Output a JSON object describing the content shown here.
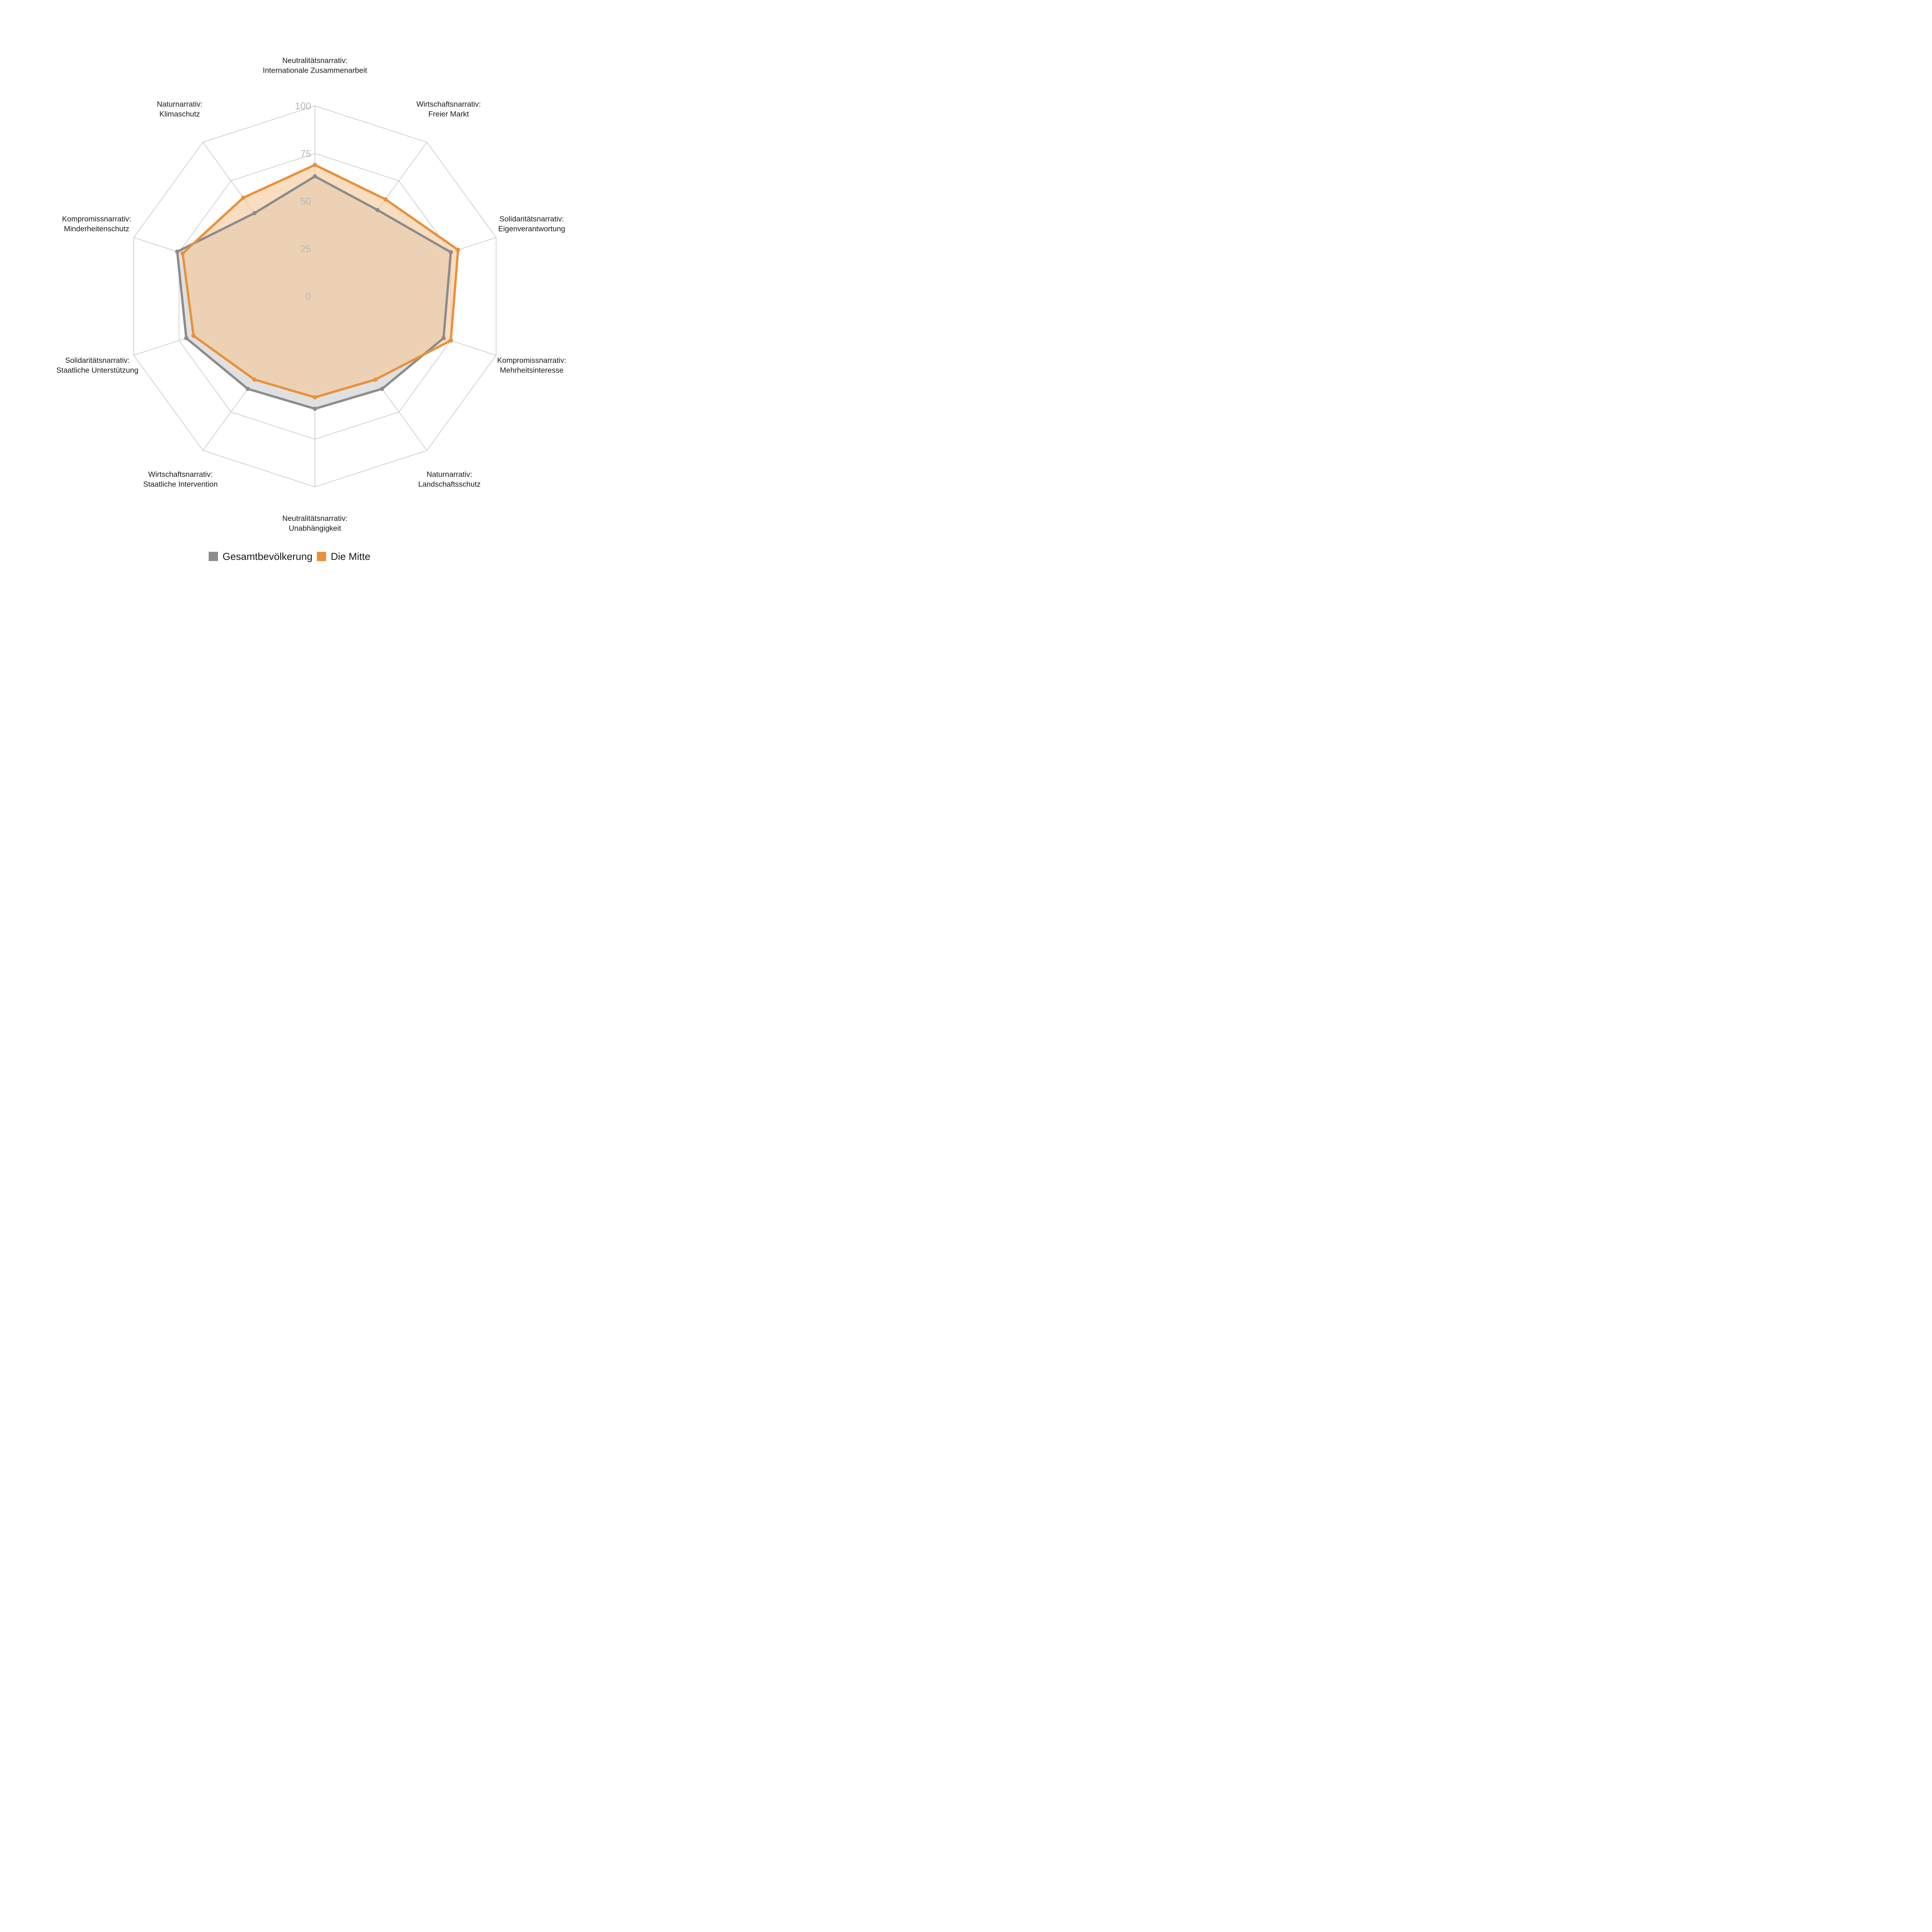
{
  "chart_data": {
    "type": "radar",
    "title": "",
    "axes": [
      [
        "Neutralitätsnarrativ:",
        "Internationale Zusammenarbeit"
      ],
      [
        "Wirtschaftsnarrativ:",
        "Freier Markt"
      ],
      [
        "Solidaritätsnarrativ:",
        "Eigenverantwortung"
      ],
      [
        "Kompromissnarrativ:",
        "Mehrheitsinteresse"
      ],
      [
        "Naturnarrativ:",
        "Landschaftsschutz"
      ],
      [
        "Neutralitätsnarrativ:",
        "Unabhängigkeit"
      ],
      [
        "Wirtschaftsnarrativ:",
        "Staatliche Intervention"
      ],
      [
        "Solidaritätsnarrativ:",
        "Staatliche Unterstützung"
      ],
      [
        "Kompromissnarrativ:",
        "Minderheitenschutz"
      ],
      [
        "Naturnarrativ:",
        "Klimaschutz"
      ]
    ],
    "rlim": [
      0,
      100
    ],
    "ticks": [
      0,
      25,
      50,
      75,
      100
    ],
    "tick_labels": [
      "0",
      "25",
      "50",
      "75",
      "100"
    ],
    "grid": true,
    "legend_position": "bottom",
    "series": [
      {
        "name": "Gesamtbevölkerung",
        "color": "#8c8c8c",
        "fill": "#e0e0e0",
        "values": [
          63,
          56,
          75,
          71,
          60,
          59,
          60,
          71,
          76,
          54
        ]
      },
      {
        "name": "Die Mitte",
        "color": "#e8913a",
        "fill": "#f5c89a",
        "values": [
          69,
          63,
          79,
          75,
          54,
          53,
          54,
          67,
          73,
          64
        ]
      }
    ]
  }
}
